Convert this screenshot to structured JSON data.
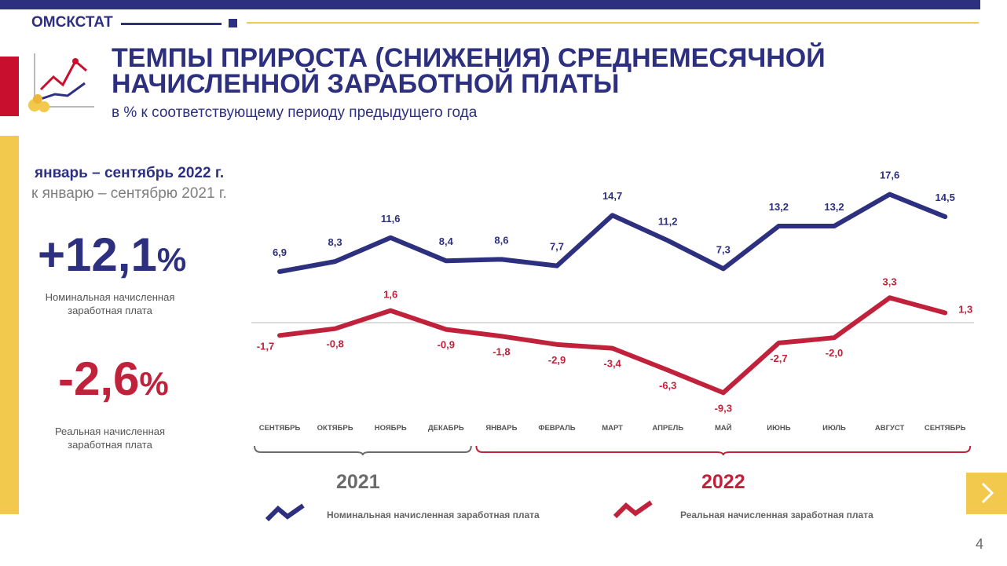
{
  "header": {
    "org": "ОМСКСТАТ",
    "title_line1": "ТЕМПЫ ПРИРОСТА (СНИЖЕНИЯ) СРЕДНЕМЕСЯЧНОЙ",
    "title_line2": "НАЧИСЛЕННОЙ  ЗАРАБОТНОЙ ПЛАТЫ",
    "subtitle": "в % к соответствующему периоду предыдущего года"
  },
  "summary": {
    "period_line1": "январь – сентябрь 2022 г.",
    "period_line2": "к январю – сентябрю 2021 г.",
    "nominal_value": "+12,1",
    "nominal_unit": "%",
    "nominal_caption_line1": "Номинальная начисленная",
    "nominal_caption_line2": "заработная плата",
    "real_value": "-2,6",
    "real_unit": "%",
    "real_caption_line1": "Реальная начисленная",
    "real_caption_line2": "заработная плата"
  },
  "chart_data": {
    "type": "line",
    "categories": [
      "СЕНТЯБРЬ",
      "ОКТЯБРЬ",
      "НОЯБРЬ",
      "ДЕКАБРЬ",
      "ЯНВАРЬ",
      "ФЕВРАЛЬ",
      "МАРТ",
      "АПРЕЛЬ",
      "МАЙ",
      "ИЮНЬ",
      "ИЮЛЬ",
      "АВГУСТ",
      "СЕНТЯБРЬ"
    ],
    "series": [
      {
        "name": "Номинальная начисленная заработная плата",
        "color": "#2d2f7f",
        "values": [
          6.9,
          8.3,
          11.6,
          8.4,
          8.6,
          7.7,
          14.7,
          11.2,
          7.3,
          13.2,
          13.2,
          17.6,
          14.5
        ],
        "labels": [
          "6,9",
          "8,3",
          "11,6",
          "8,4",
          "8,6",
          "7,7",
          "14,7",
          "11,2",
          "7,3",
          "13,2",
          "13,2",
          "17,6",
          "14,5"
        ]
      },
      {
        "name": "Реальная  начисленная заработная плата",
        "color": "#c0223b",
        "values": [
          -1.7,
          -0.8,
          1.6,
          -0.9,
          -1.8,
          -2.9,
          -3.4,
          -6.3,
          -9.3,
          -2.7,
          -2.0,
          3.3,
          1.3
        ],
        "labels": [
          "-1,7",
          "-0,8",
          "1,6",
          "-0,9",
          "-1,8",
          "-2,9",
          "-3,4",
          "-6,3",
          "-9,3",
          "-2,7",
          "-2,0",
          "3,3",
          "1,3"
        ]
      }
    ],
    "groups": [
      {
        "label": "2021",
        "from": 0,
        "to": 3,
        "color": "#6b6b6b"
      },
      {
        "label": "2022",
        "from": 4,
        "to": 12,
        "color": "#c0223b"
      }
    ],
    "zero_line": true
  },
  "footer": {
    "page_number": "4"
  }
}
